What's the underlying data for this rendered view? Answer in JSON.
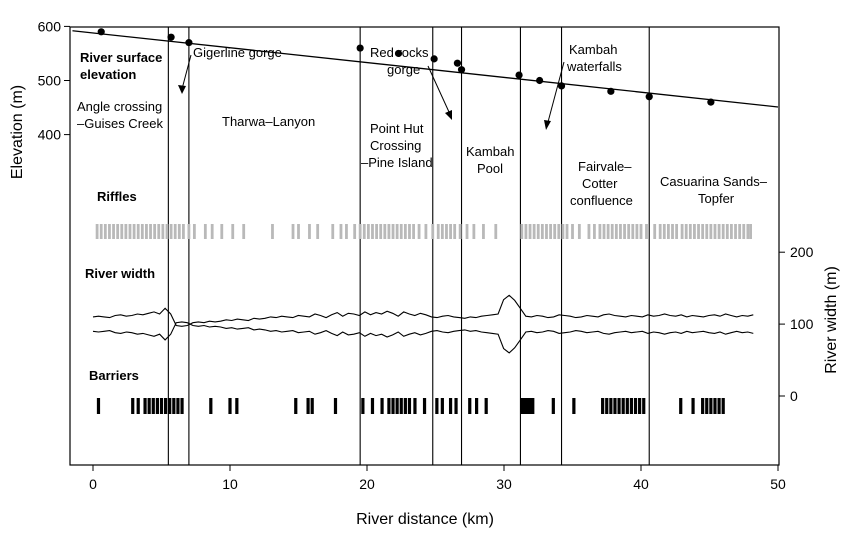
{
  "chart_data": {
    "type": "line",
    "xlabel": "River distance (km)",
    "ylabel_left": "Elevation (m)",
    "ylabel_right": "River width (m)",
    "xlim": [
      -1.5,
      50
    ],
    "x_ticks": [
      "0",
      "10",
      "20",
      "30",
      "40",
      "50"
    ],
    "y_ticks_left": [
      "400",
      "500",
      "600",
      "700"
    ],
    "y_ticks_right": [
      "0",
      "100",
      "200"
    ],
    "elevation_ylim_visible": [
      385,
      710
    ],
    "width_ylim": [
      -100,
      220
    ],
    "section_titles": {
      "elevation": "River surface elevation",
      "riffles": "Riffles",
      "width": "River width",
      "barriers": "Barriers"
    },
    "reach_boundaries_km": [
      5.5,
      7.0,
      19.5,
      24.8,
      26.9,
      31.2,
      34.2,
      40.6
    ],
    "elevation_series": {
      "points": [
        {
          "x": 0.6,
          "y": 590
        },
        {
          "x": 5.7,
          "y": 580
        },
        {
          "x": 7.0,
          "y": 570
        },
        {
          "x": 19.5,
          "y": 560
        },
        {
          "x": 22.3,
          "y": 550
        },
        {
          "x": 24.9,
          "y": 540
        },
        {
          "x": 26.6,
          "y": 532
        },
        {
          "x": 26.9,
          "y": 520
        },
        {
          "x": 31.1,
          "y": 510
        },
        {
          "x": 32.6,
          "y": 500
        },
        {
          "x": 34.2,
          "y": 490
        },
        {
          "x": 37.8,
          "y": 480
        },
        {
          "x": 40.6,
          "y": 470
        },
        {
          "x": 45.1,
          "y": 460
        }
      ],
      "line_start": [
        -1.5,
        592
      ],
      "line_end": [
        50,
        451
      ]
    },
    "annotations": [
      {
        "lines": [
          "Angle crossing",
          "–Guises Creek"
        ]
      },
      {
        "lines": [
          "Gigerline gorge"
        ]
      },
      {
        "lines": [
          "Tharwa–Lanyon"
        ]
      },
      {
        "lines": [
          "Point Hut",
          "Crossing",
          "–Pine Island"
        ]
      },
      {
        "lines": [
          "Red rocks",
          "gorge"
        ]
      },
      {
        "lines": [
          "Kambah",
          "Pool"
        ]
      },
      {
        "lines": [
          "Kambah",
          "waterfalls"
        ]
      },
      {
        "lines": [
          "Fairvale–",
          "Cotter",
          "confluence"
        ]
      },
      {
        "lines": [
          "Casuarina Sands–",
          "Topfer"
        ]
      }
    ],
    "riffles_km": [
      0.3,
      0.6,
      0.9,
      1.2,
      1.5,
      1.8,
      2.1,
      2.4,
      2.7,
      3.0,
      3.3,
      3.6,
      3.9,
      4.2,
      4.5,
      4.8,
      5.1,
      5.4,
      5.7,
      6.0,
      6.3,
      6.6,
      7.0,
      7.4,
      8.2,
      8.7,
      9.4,
      10.2,
      11.0,
      13.1,
      14.6,
      15.0,
      15.8,
      16.4,
      17.5,
      18.1,
      18.5,
      19.1,
      19.5,
      19.8,
      20.1,
      20.4,
      20.7,
      21.0,
      21.3,
      21.6,
      21.9,
      22.2,
      22.5,
      22.8,
      23.1,
      23.4,
      23.8,
      24.3,
      24.8,
      25.2,
      25.5,
      25.8,
      26.1,
      26.4,
      26.8,
      27.3,
      27.8,
      28.5,
      29.4,
      31.3,
      31.6,
      31.9,
      32.2,
      32.5,
      32.8,
      33.1,
      33.4,
      33.7,
      34.0,
      34.3,
      34.6,
      35.0,
      35.5,
      36.2,
      36.6,
      37.0,
      37.3,
      37.6,
      37.9,
      38.2,
      38.5,
      38.8,
      39.1,
      39.4,
      39.7,
      40.0,
      40.4,
      41.0,
      41.4,
      41.7,
      42.0,
      42.3,
      42.6,
      43.0,
      43.3,
      43.6,
      43.9,
      44.2,
      44.5,
      44.8,
      45.1,
      45.4,
      45.7,
      46.0,
      46.3,
      46.6,
      46.9,
      47.2,
      47.5,
      47.8,
      48.0
    ],
    "barriers_km": [
      0.4,
      2.9,
      3.3,
      3.8,
      4.1,
      4.4,
      4.7,
      5.0,
      5.3,
      5.6,
      5.9,
      6.2,
      6.5,
      8.6,
      10.0,
      10.5,
      14.8,
      15.7,
      16.0,
      17.7,
      19.7,
      20.4,
      21.1,
      21.6,
      21.9,
      22.2,
      22.5,
      22.8,
      23.1,
      23.5,
      24.2,
      25.1,
      25.5,
      26.1,
      26.5,
      27.5,
      28.0,
      28.7,
      31.3,
      31.5,
      31.7,
      31.9,
      32.1,
      33.6,
      35.1,
      37.2,
      37.5,
      37.8,
      38.1,
      38.4,
      38.7,
      39.0,
      39.3,
      39.6,
      39.9,
      40.2,
      42.9,
      43.8,
      44.5,
      44.8,
      45.1,
      45.4,
      45.7,
      46.0
    ],
    "width_profile": {
      "x_start": 0,
      "x_end": 48.2,
      "center_m": 100,
      "half_width_m": [
        10,
        11,
        10,
        9,
        12,
        13,
        11,
        12,
        14,
        13,
        15,
        17,
        14,
        22,
        14,
        -2,
        -3,
        -2,
        2,
        3,
        2,
        4,
        3,
        4,
        6,
        5,
        7,
        6,
        5,
        8,
        7,
        8,
        10,
        9,
        11,
        10,
        9,
        12,
        11,
        10,
        14,
        12,
        9,
        13,
        16,
        11,
        15,
        14,
        12,
        17,
        13,
        16,
        14,
        18,
        15,
        11,
        17,
        14,
        12,
        15,
        13,
        10,
        9,
        11,
        12,
        10,
        9,
        8,
        10,
        9,
        11,
        12,
        13,
        14,
        34,
        40,
        33,
        22,
        11,
        10,
        12,
        11,
        9,
        10,
        13,
        12,
        11,
        9,
        10,
        12,
        11,
        10,
        13,
        14,
        12,
        11,
        10,
        12,
        11,
        10,
        13,
        11,
        12,
        14,
        12,
        11,
        13,
        10,
        12,
        11,
        10,
        12,
        13,
        11,
        14,
        12,
        10,
        12,
        11,
        13
      ]
    }
  }
}
